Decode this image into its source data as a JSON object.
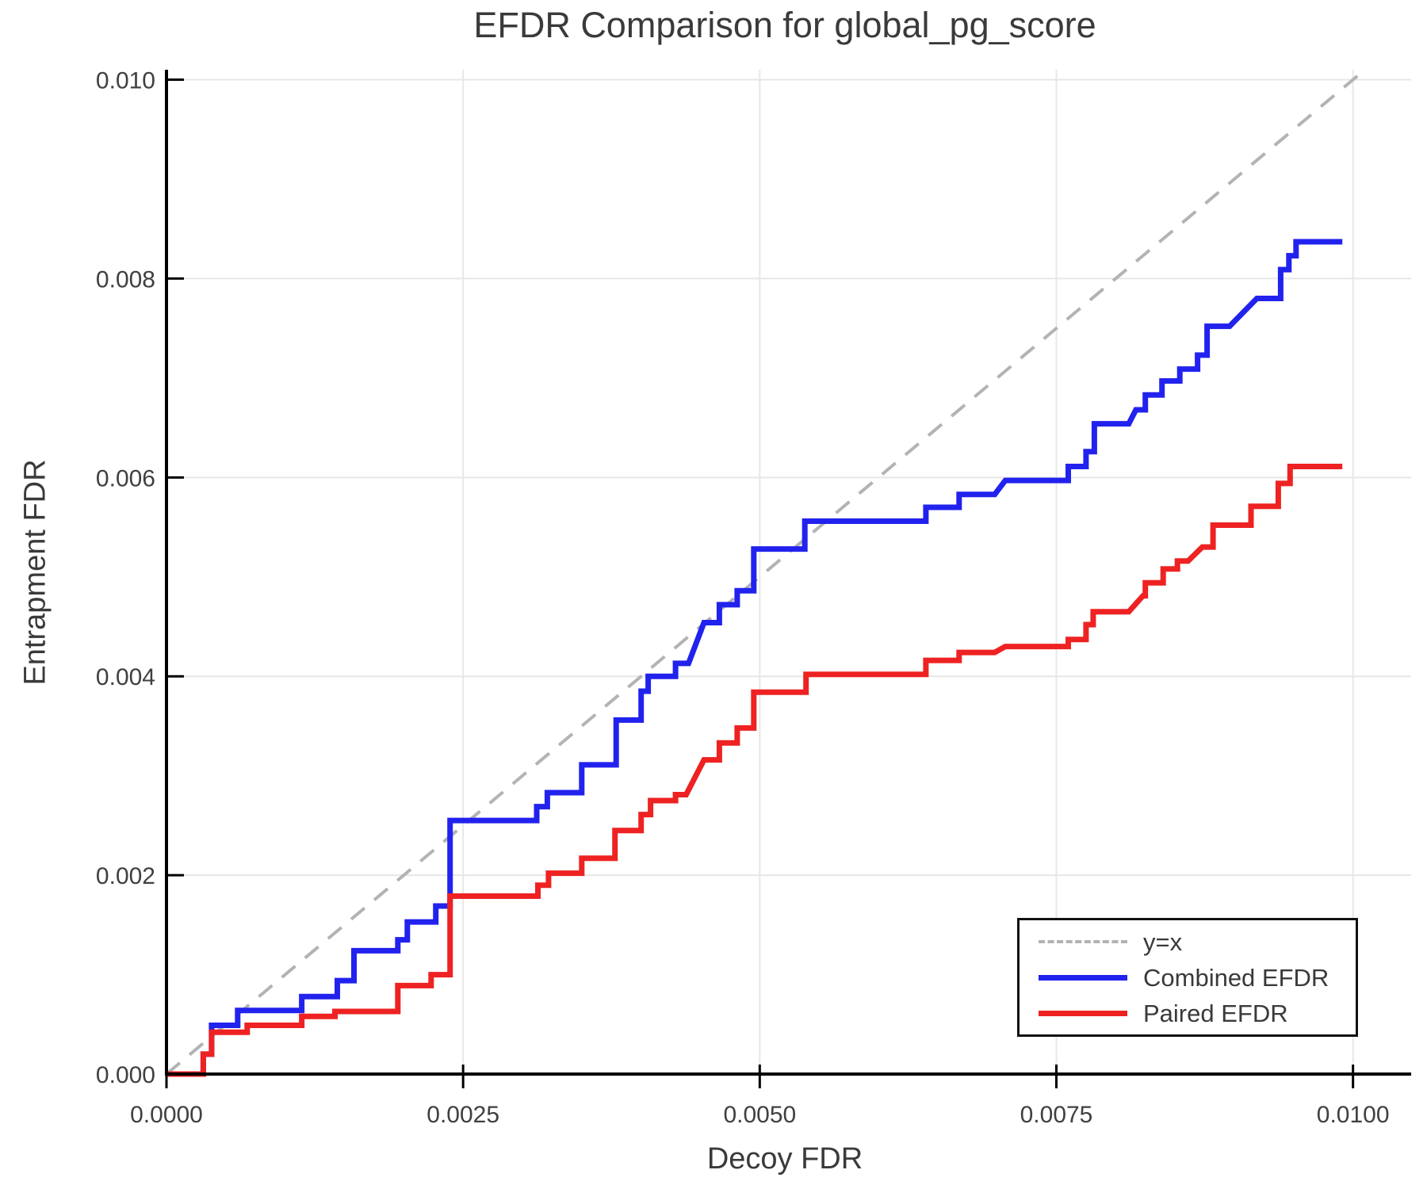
{
  "title": "EFDR Comparison for global_pg_score",
  "axes": {
    "xlabel": "Decoy FDR",
    "ylabel": "Entrapment FDR",
    "x_ticks": [
      {
        "value": 0.0,
        "label": "0.0000"
      },
      {
        "value": 0.0025,
        "label": "0.0025"
      },
      {
        "value": 0.005,
        "label": "0.0050"
      },
      {
        "value": 0.0075,
        "label": "0.0075"
      },
      {
        "value": 0.01,
        "label": "0.0100"
      }
    ],
    "y_ticks": [
      {
        "value": 0.0,
        "label": "0.000"
      },
      {
        "value": 0.002,
        "label": "0.002"
      },
      {
        "value": 0.004,
        "label": "0.004"
      },
      {
        "value": 0.006,
        "label": "0.006"
      },
      {
        "value": 0.008,
        "label": "0.008"
      },
      {
        "value": 0.01,
        "label": "0.010"
      }
    ]
  },
  "legend": {
    "items": [
      {
        "label": "y=x",
        "color": "#b3b3b3",
        "dashed": true
      },
      {
        "label": "Combined EFDR",
        "color": "#2222ee",
        "dashed": false
      },
      {
        "label": "Paired EFDR",
        "color": "#ee2222",
        "dashed": false
      }
    ],
    "position": "lower right"
  },
  "colors": {
    "combined": "#2222ee",
    "paired": "#ee2222",
    "diagonal": "#b3b3b3",
    "grid": "#e7e7e7",
    "axis": "#000000",
    "text": "#3a3a3a"
  },
  "chart_data": {
    "type": "line",
    "title": "EFDR Comparison for global_pg_score",
    "xlabel": "Decoy FDR",
    "ylabel": "Entrapment FDR",
    "xlim": [
      0,
      0.01049
    ],
    "ylim": [
      0,
      0.0101
    ],
    "grid": true,
    "legend_position": "lower right",
    "series": [
      {
        "name": "y=x",
        "style": "dashed",
        "color": "#b3b3b3",
        "points": [
          [
            0,
            0
          ],
          [
            0.0101,
            0.0101
          ]
        ]
      },
      {
        "name": "Combined EFDR",
        "style": "step",
        "color": "#2222ee",
        "points": [
          [
            0,
            0
          ],
          [
            0.00031,
            0
          ],
          [
            0.00031,
            0.0002
          ],
          [
            0.00038,
            0.0002
          ],
          [
            0.00038,
            0.00049
          ],
          [
            0.0006,
            0.00049
          ],
          [
            0.0006,
            0.00064
          ],
          [
            0.00114,
            0.00064
          ],
          [
            0.00114,
            0.00078
          ],
          [
            0.00144,
            0.00078
          ],
          [
            0.00144,
            0.00094
          ],
          [
            0.00158,
            0.00094
          ],
          [
            0.00158,
            0.00124
          ],
          [
            0.00195,
            0.00124
          ],
          [
            0.00195,
            0.00135
          ],
          [
            0.00203,
            0.00135
          ],
          [
            0.00203,
            0.00153
          ],
          [
            0.00227,
            0.00153
          ],
          [
            0.00227,
            0.00169
          ],
          [
            0.00239,
            0.00169
          ],
          [
            0.00239,
            0.00255
          ],
          [
            0.00312,
            0.00255
          ],
          [
            0.00312,
            0.00269
          ],
          [
            0.00321,
            0.00269
          ],
          [
            0.00321,
            0.00283
          ],
          [
            0.0035,
            0.00283
          ],
          [
            0.0035,
            0.00311
          ],
          [
            0.00379,
            0.00311
          ],
          [
            0.00379,
            0.00356
          ],
          [
            0.004,
            0.00356
          ],
          [
            0.004,
            0.00385
          ],
          [
            0.00406,
            0.00385
          ],
          [
            0.00406,
            0.004
          ],
          [
            0.00429,
            0.004
          ],
          [
            0.00429,
            0.00413
          ],
          [
            0.0044,
            0.00413
          ],
          [
            0.00453,
            0.00454
          ],
          [
            0.00466,
            0.00454
          ],
          [
            0.00466,
            0.00472
          ],
          [
            0.00481,
            0.00472
          ],
          [
            0.00481,
            0.00486
          ],
          [
            0.00495,
            0.00486
          ],
          [
            0.00495,
            0.00528
          ],
          [
            0.00538,
            0.00528
          ],
          [
            0.00538,
            0.00556
          ],
          [
            0.0064,
            0.00556
          ],
          [
            0.0064,
            0.0057
          ],
          [
            0.00668,
            0.0057
          ],
          [
            0.00668,
            0.00583
          ],
          [
            0.00698,
            0.00583
          ],
          [
            0.00707,
            0.00597
          ],
          [
            0.0076,
            0.00597
          ],
          [
            0.0076,
            0.00611
          ],
          [
            0.00775,
            0.00611
          ],
          [
            0.00775,
            0.00626
          ],
          [
            0.00782,
            0.00626
          ],
          [
            0.00782,
            0.00654
          ],
          [
            0.00811,
            0.00654
          ],
          [
            0.00817,
            0.00668
          ],
          [
            0.00825,
            0.00668
          ],
          [
            0.00825,
            0.00683
          ],
          [
            0.00839,
            0.00683
          ],
          [
            0.00839,
            0.00697
          ],
          [
            0.00854,
            0.00697
          ],
          [
            0.00854,
            0.00709
          ],
          [
            0.00869,
            0.00709
          ],
          [
            0.00869,
            0.00723
          ],
          [
            0.00877,
            0.00723
          ],
          [
            0.00877,
            0.00752
          ],
          [
            0.00896,
            0.00752
          ],
          [
            0.00919,
            0.0078
          ],
          [
            0.00939,
            0.0078
          ],
          [
            0.00939,
            0.00809
          ],
          [
            0.00946,
            0.00809
          ],
          [
            0.00946,
            0.00823
          ],
          [
            0.00952,
            0.00823
          ],
          [
            0.00952,
            0.00837
          ],
          [
            0.00991,
            0.00837
          ]
        ]
      },
      {
        "name": "Paired EFDR",
        "style": "step",
        "color": "#ee2222",
        "points": [
          [
            0,
            0
          ],
          [
            0.00031,
            0
          ],
          [
            0.00031,
            0.0002
          ],
          [
            0.00038,
            0.0002
          ],
          [
            0.00038,
            0.00042
          ],
          [
            0.00068,
            0.00042
          ],
          [
            0.00068,
            0.00049
          ],
          [
            0.00114,
            0.00049
          ],
          [
            0.00114,
            0.00058
          ],
          [
            0.00142,
            0.00058
          ],
          [
            0.00142,
            0.00063
          ],
          [
            0.00195,
            0.00063
          ],
          [
            0.00195,
            0.00089
          ],
          [
            0.00223,
            0.00089
          ],
          [
            0.00223,
            0.001
          ],
          [
            0.00239,
            0.001
          ],
          [
            0.00239,
            0.00179
          ],
          [
            0.00313,
            0.00179
          ],
          [
            0.00313,
            0.0019
          ],
          [
            0.00322,
            0.0019
          ],
          [
            0.00322,
            0.00202
          ],
          [
            0.0035,
            0.00202
          ],
          [
            0.0035,
            0.00217
          ],
          [
            0.00378,
            0.00217
          ],
          [
            0.00378,
            0.00245
          ],
          [
            0.004,
            0.00245
          ],
          [
            0.004,
            0.00261
          ],
          [
            0.00408,
            0.00261
          ],
          [
            0.00408,
            0.00275
          ],
          [
            0.00429,
            0.00275
          ],
          [
            0.00429,
            0.00281
          ],
          [
            0.00438,
            0.00281
          ],
          [
            0.00453,
            0.00316
          ],
          [
            0.00466,
            0.00316
          ],
          [
            0.00466,
            0.00333
          ],
          [
            0.00481,
            0.00333
          ],
          [
            0.00481,
            0.00348
          ],
          [
            0.00495,
            0.00348
          ],
          [
            0.00495,
            0.00384
          ],
          [
            0.00539,
            0.00384
          ],
          [
            0.00539,
            0.00402
          ],
          [
            0.0064,
            0.00402
          ],
          [
            0.0064,
            0.00416
          ],
          [
            0.00668,
            0.00416
          ],
          [
            0.00668,
            0.00424
          ],
          [
            0.00698,
            0.00424
          ],
          [
            0.00707,
            0.0043
          ],
          [
            0.0076,
            0.0043
          ],
          [
            0.0076,
            0.00437
          ],
          [
            0.00775,
            0.00437
          ],
          [
            0.00775,
            0.00452
          ],
          [
            0.00781,
            0.00452
          ],
          [
            0.00781,
            0.00465
          ],
          [
            0.00811,
            0.00465
          ],
          [
            0.00823,
            0.00481
          ],
          [
            0.00825,
            0.00481
          ],
          [
            0.00825,
            0.00494
          ],
          [
            0.0084,
            0.00494
          ],
          [
            0.0084,
            0.00508
          ],
          [
            0.00852,
            0.00508
          ],
          [
            0.00852,
            0.00516
          ],
          [
            0.00861,
            0.00516
          ],
          [
            0.00873,
            0.0053
          ],
          [
            0.00882,
            0.0053
          ],
          [
            0.00882,
            0.00552
          ],
          [
            0.00914,
            0.00552
          ],
          [
            0.00914,
            0.00571
          ],
          [
            0.00937,
            0.00571
          ],
          [
            0.00937,
            0.00594
          ],
          [
            0.00947,
            0.00594
          ],
          [
            0.00947,
            0.00611
          ],
          [
            0.00991,
            0.00611
          ]
        ]
      }
    ]
  }
}
